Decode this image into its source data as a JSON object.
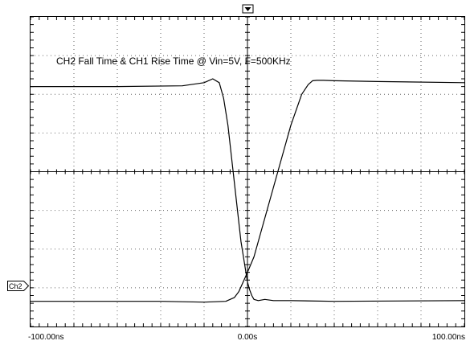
{
  "chart_data": {
    "type": "line",
    "title": "CH2 Fall Time & CH1 Rise Time @ Vin=5V, F=500KHz",
    "x_unit": "ns",
    "x_ticks": [
      "-100.00ns",
      "0.00s",
      "100.00ns"
    ],
    "xlim": [
      -100,
      100
    ],
    "grid": true,
    "grid_divisions": {
      "x": 10,
      "y": 8
    },
    "ylim_div": [
      -4,
      4
    ],
    "channel_marker": "Ch2",
    "trigger_marker": "trigger-position",
    "series": [
      {
        "name": "CH2",
        "x": [
          -100,
          -60,
          -30,
          -20,
          -16,
          -13,
          -11,
          -9,
          -7,
          -5,
          -3,
          -1,
          0,
          1,
          2,
          3,
          5,
          8,
          12,
          20,
          40,
          100
        ],
        "y": [
          2.2,
          2.2,
          2.22,
          2.3,
          2.4,
          2.3,
          1.9,
          1.2,
          0.2,
          -0.8,
          -1.8,
          -2.5,
          -2.85,
          -3.05,
          -3.2,
          -3.3,
          -3.33,
          -3.3,
          -3.33,
          -3.33,
          -3.35,
          -3.33
        ]
      },
      {
        "name": "CH1",
        "x": [
          -100,
          -40,
          -20,
          -10,
          -6,
          -4,
          -2,
          0,
          3,
          6,
          10,
          15,
          20,
          25,
          28,
          30,
          32,
          35,
          40,
          60,
          100
        ],
        "y": [
          -3.35,
          -3.35,
          -3.37,
          -3.35,
          -3.25,
          -3.1,
          -2.85,
          -2.6,
          -2.2,
          -1.6,
          -0.8,
          0.2,
          1.2,
          2.0,
          2.25,
          2.35,
          2.36,
          2.36,
          2.35,
          2.33,
          2.3
        ]
      }
    ]
  }
}
